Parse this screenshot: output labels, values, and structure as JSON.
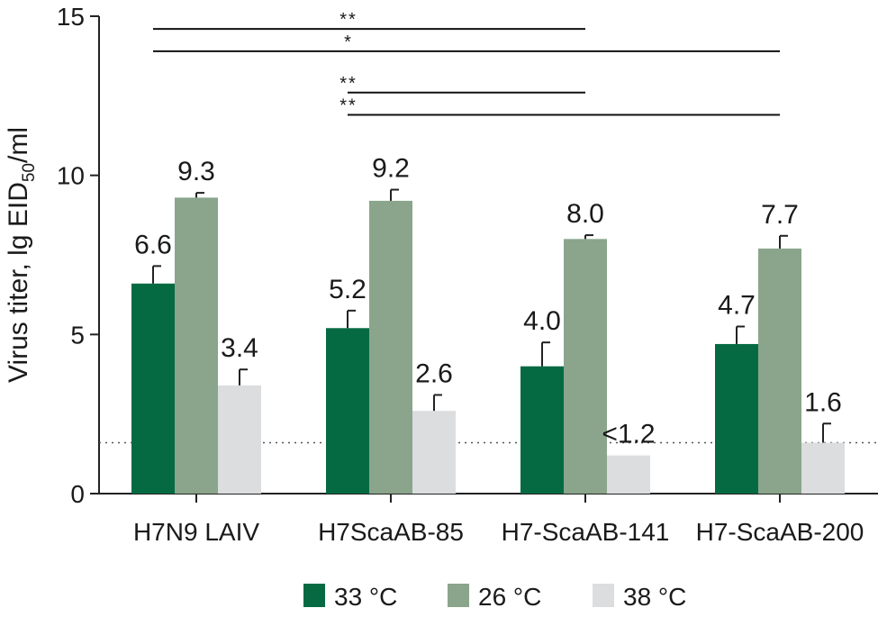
{
  "chart_data": {
    "type": "bar",
    "ylabel": {
      "prefix": "Virus titer, lg EID",
      "sub": "50",
      "suffix": "/ml"
    },
    "ylim": [
      0,
      15
    ],
    "yticks": [
      "0",
      "5",
      "10",
      "15"
    ],
    "categories": [
      "H7N9 LAIV",
      "H7ScaAB-85",
      "H7-ScaAB-141",
      "H7-ScaAB-200"
    ],
    "series": [
      {
        "name": "33 °C",
        "color": "#056a42",
        "values": [
          6.6,
          5.2,
          4.0,
          4.7
        ],
        "errors": [
          0.55,
          0.55,
          0.75,
          0.55
        ],
        "labels": [
          "6.6",
          "5.2",
          "4.0",
          "4.7"
        ]
      },
      {
        "name": "26 °C",
        "color": "#8aa58b",
        "values": [
          9.3,
          9.2,
          8.0,
          7.7
        ],
        "errors": [
          0.15,
          0.35,
          0.12,
          0.4
        ],
        "labels": [
          "9.3",
          "9.2",
          "8.0",
          "7.7"
        ]
      },
      {
        "name": "38 °C",
        "color": "#dcdddf",
        "values": [
          3.4,
          2.6,
          1.2,
          1.6
        ],
        "errors": [
          0.5,
          0.5,
          null,
          0.6
        ],
        "labels": [
          "3.4",
          "2.6",
          "<1.2",
          "1.6"
        ]
      }
    ],
    "detection_limit": 1.6,
    "significance": [
      {
        "from": 0,
        "to": 2,
        "y": 14.6,
        "label": "**"
      },
      {
        "from": 0,
        "to": 3,
        "y": 13.9,
        "label": "*"
      },
      {
        "from": 1,
        "to": 2,
        "y": 12.6,
        "label": "**"
      },
      {
        "from": 1,
        "to": 3,
        "y": 11.9,
        "label": "**"
      }
    ]
  }
}
